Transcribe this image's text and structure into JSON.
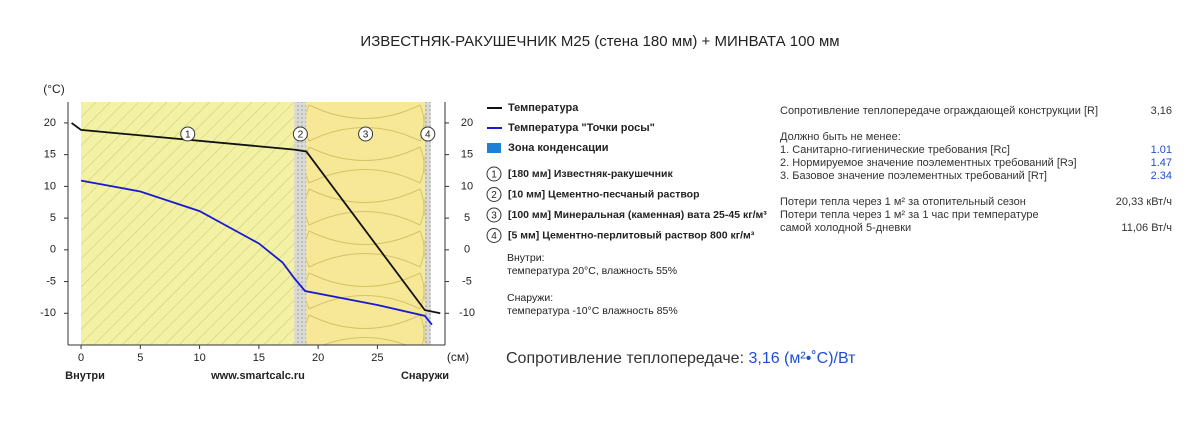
{
  "chart_data": {
    "type": "line",
    "title": "ИЗВЕСТНЯК-РАКУШЕЧНИК М25 (стена 180 мм) + МИНВАТА 100 мм",
    "y_label": "(°C)",
    "x_label": "(см)",
    "inside_label": "Внутри",
    "outside_label": "Снаружи",
    "site": "www.smartcalc.ru",
    "xlim": [
      -1.1,
      30.7
    ],
    "ylim": [
      -15,
      23.3
    ],
    "xticks": [
      0,
      5,
      10,
      15,
      20,
      25
    ],
    "yticks": [
      -10,
      -5,
      0,
      5,
      10,
      15,
      20
    ],
    "layers": [
      {
        "number": "1",
        "name": "[180 мм] Известняк-ракушечник",
        "start": 0,
        "end": 18,
        "color": "#f2f1a4",
        "pattern": "hatch"
      },
      {
        "number": "2",
        "name": "[10 мм] Цементно-песчаный раствор",
        "start": 18,
        "end": 19,
        "color": "#d9d9d6",
        "pattern": "dots"
      },
      {
        "number": "3",
        "name": "[100 мм] Минеральная (каменная) вата 25-45 кг/м³",
        "start": 19,
        "end": 29,
        "color": "#f6e897",
        "pattern": "wool"
      },
      {
        "number": "4",
        "name": "[5 мм] Цементно-перлитовый раствор 800 кг/м³",
        "start": 29,
        "end": 29.5,
        "color": "#d9d9d6",
        "pattern": "dots"
      }
    ],
    "series": [
      {
        "name": "Температура",
        "color": "#111111",
        "x": [
          -0.8,
          0,
          18,
          19,
          29,
          30.3
        ],
        "values": [
          20,
          18.9,
          15.8,
          15.5,
          -9.5,
          -10
        ]
      },
      {
        "name": "Температура \"Точки росы\"",
        "color": "#1a1ad0",
        "x": [
          0,
          5,
          10,
          15,
          17,
          18,
          18.9,
          25,
          29,
          29.6
        ],
        "values": [
          10.9,
          9.2,
          6.1,
          1,
          -2,
          -4.5,
          -6.5,
          -8.7,
          -10.4,
          -11.8
        ]
      }
    ],
    "condensation_zone": {
      "name": "Зона конденсации",
      "color": "#1e7fd6"
    },
    "conditions": [
      {
        "title": "Внутри:",
        "text": "температура 20°C, влажность 55%"
      },
      {
        "title": "Снаружи:",
        "text": "температура -10°C влажность 85%"
      }
    ]
  },
  "results": {
    "resistance_label": "Сопротивление теплопередаче ограждающей конструкции [R]",
    "resistance_value": "3,16",
    "requirements_title": "Должно быть не менее:",
    "requirements": [
      {
        "label": "1. Санитарно-гигиенические требования [Rc]",
        "value": "1.01"
      },
      {
        "label": "2. Нормируемое значение поэлементных требований [Rэ]",
        "value": "1.47"
      },
      {
        "label": "3. Базовое значение поэлементных требований [Rт]",
        "value": "2.34"
      }
    ],
    "losses": [
      {
        "label": "Потери тепла через 1 м² за отопительный сезон",
        "value": "20,33 кВт/ч"
      },
      {
        "label": "Потери тепла через 1 м² за 1 час при температуре самой холодной 5-дневки",
        "value": "11,06 Вт/ч"
      }
    ]
  },
  "summary": {
    "label": "Сопротивление теплопередаче:",
    "value": "3,16 (м²•˚С)/Вт"
  }
}
